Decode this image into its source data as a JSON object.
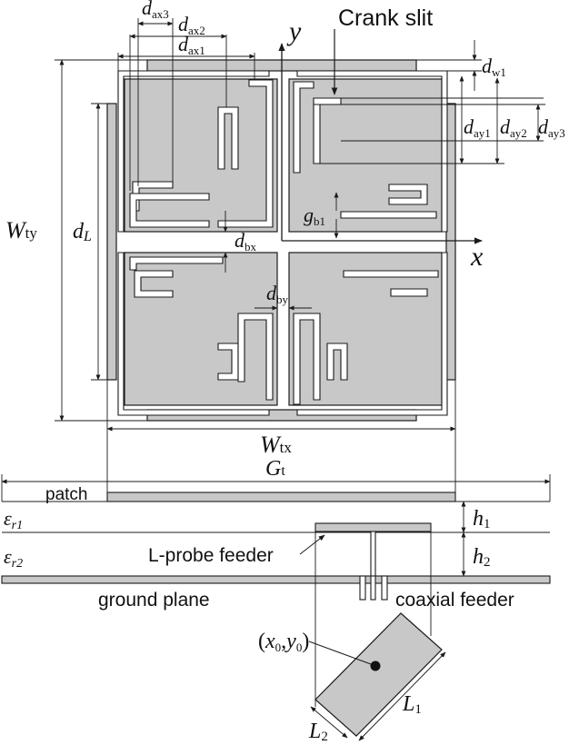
{
  "colors": {
    "fill": "#c8c8c8",
    "stroke": "#1a1a1a",
    "background": "#ffffff"
  },
  "labels": {
    "crank_slit": "Crank slit",
    "y_axis": "y",
    "x_axis": "x",
    "d_ax3": {
      "base": "d",
      "sub": "ax3"
    },
    "d_ax2": {
      "base": "d",
      "sub": "ax2"
    },
    "d_ax1": {
      "base": "d",
      "sub": "ax1"
    },
    "d_w1": {
      "base": "d",
      "sub": "w1"
    },
    "d_ay1": {
      "base": "d",
      "sub": "ay1"
    },
    "d_ay2": {
      "base": "d",
      "sub": "ay2"
    },
    "d_ay3": {
      "base": "d",
      "sub": "ay3"
    },
    "g_b1": {
      "base": "g",
      "sub": "b1"
    },
    "d_bx": {
      "base": "d",
      "sub": "bx"
    },
    "d_by": {
      "base": "d",
      "sub": "by"
    },
    "W_ty": {
      "base": "W",
      "sub": "ty"
    },
    "d_L": {
      "base": "d",
      "sub": "L"
    },
    "W_tx": {
      "base": "W",
      "sub": "tx"
    },
    "G_t": {
      "base": "G",
      "sub": "t"
    },
    "patch": "patch",
    "er1": {
      "base": "ε",
      "sub": "r1"
    },
    "er2": {
      "base": "ε",
      "sub": "r2"
    },
    "h1": {
      "base": "h",
      "sub": "1"
    },
    "h2": {
      "base": "h",
      "sub": "2"
    },
    "l_probe": "L-probe feeder",
    "ground_plane": "ground plane",
    "coaxial_feeder": "coaxial feeder",
    "feed_point": {
      "open": "(",
      "x": "x",
      "xsub": "0",
      "comma": ",",
      "y": "y",
      "ysub": "0",
      "close": ")"
    },
    "L1": {
      "base": "L",
      "sub": "1"
    },
    "L2": {
      "base": "L",
      "sub": "2"
    }
  }
}
